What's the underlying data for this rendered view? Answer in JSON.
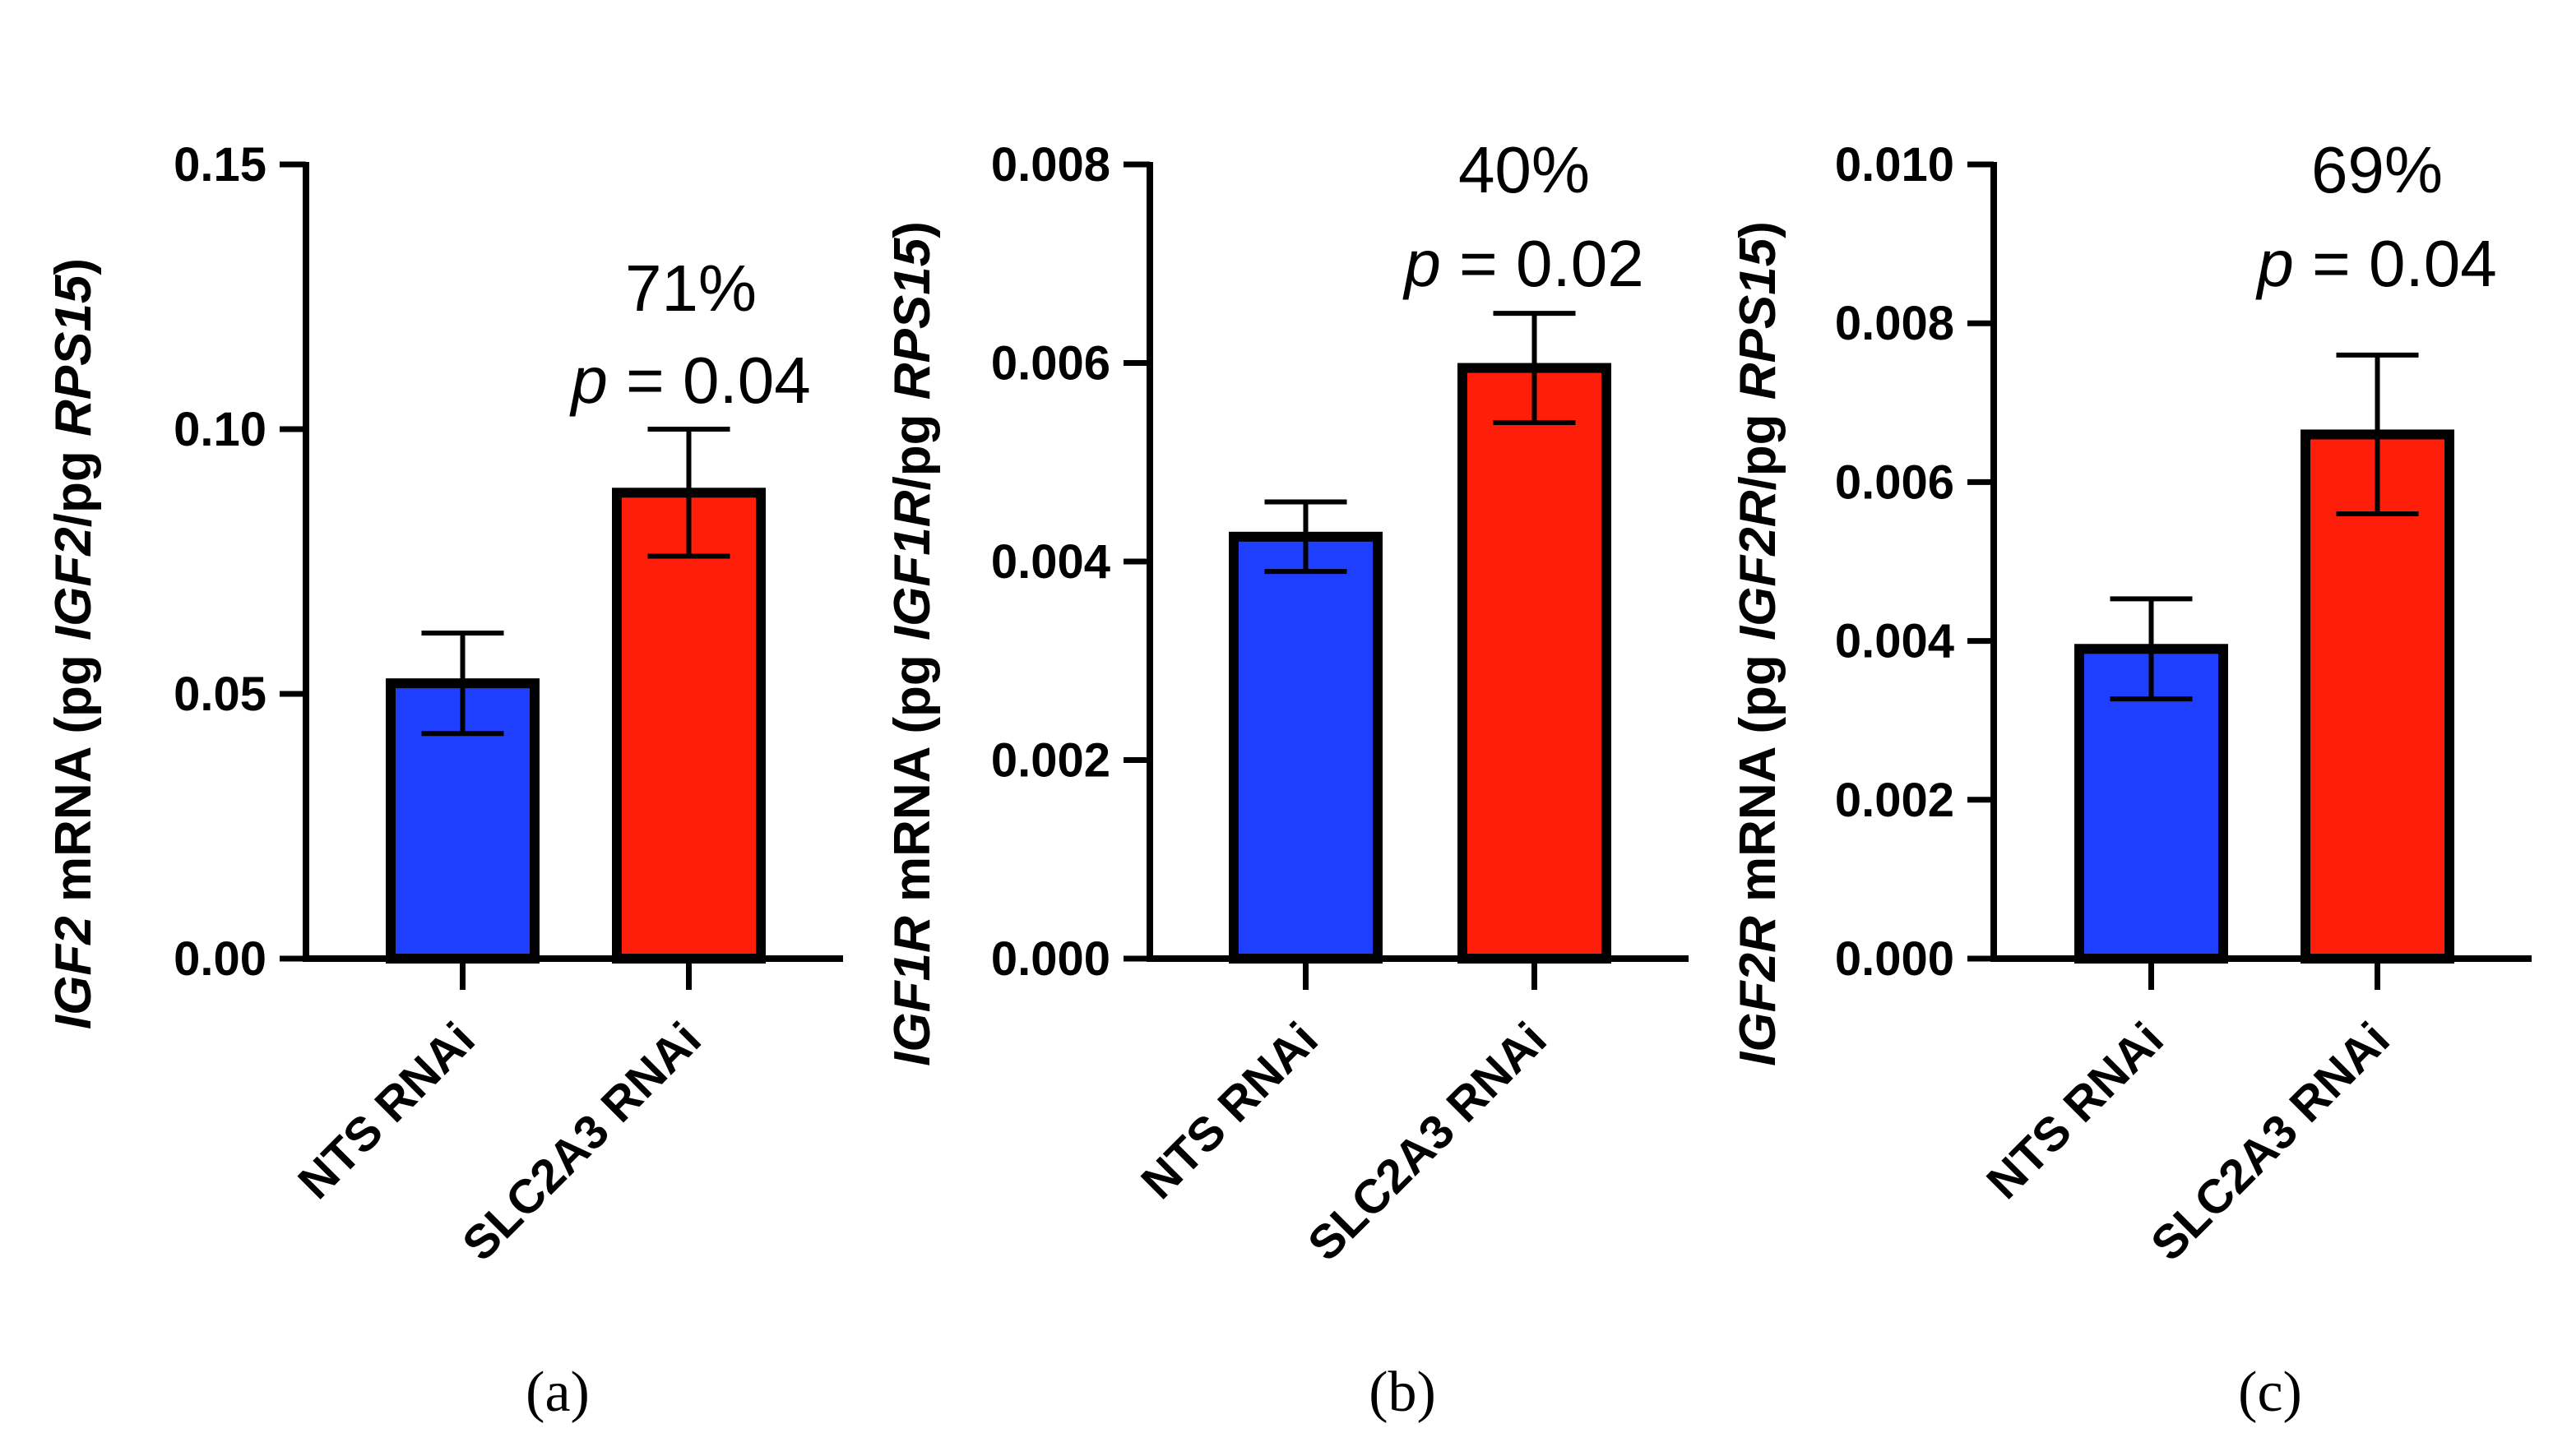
{
  "chart_data": [
    {
      "type": "bar",
      "panel_label": "(a)",
      "categories": [
        "NTS RNAi",
        "SLC2A3 RNAi"
      ],
      "values": [
        0.052,
        0.088
      ],
      "errors": [
        0.0095,
        0.012
      ],
      "colors": [
        "#1f3fff",
        "#ff1e0a"
      ],
      "ylim": [
        0,
        0.15
      ],
      "yticks": [
        "0.00",
        "0.05",
        "0.10",
        "0.15"
      ],
      "ytick_values": [
        0,
        0.05,
        0.1,
        0.15
      ],
      "ylabel": {
        "gene": "IGF2",
        "unit_prefix": " mRNA (pg ",
        "ref_gene_pre": "IGF2",
        "mid": "/pg ",
        "ref_gene": "RPS15",
        "close": ")"
      },
      "annotation": {
        "percent": "71%",
        "p_symbol": "p",
        "p_text": " = 0.04"
      }
    },
    {
      "type": "bar",
      "panel_label": "(b)",
      "categories": [
        "NTS RNAi",
        "SLC2A3 RNAi"
      ],
      "values": [
        0.00425,
        0.00595
      ],
      "errors": [
        0.00035,
        0.00055
      ],
      "colors": [
        "#1f3fff",
        "#ff1e0a"
      ],
      "ylim": [
        0,
        0.008
      ],
      "yticks": [
        "0.000",
        "0.002",
        "0.004",
        "0.006",
        "0.008"
      ],
      "ytick_values": [
        0,
        0.002,
        0.004,
        0.006,
        0.008
      ],
      "ylabel": {
        "gene": "IGF1R",
        "unit_prefix": " mRNA (pg ",
        "ref_gene_pre": "IGF1R",
        "mid": "/pg ",
        "ref_gene": "RPS15",
        "close": ")"
      },
      "annotation": {
        "percent": "40%",
        "p_symbol": "p",
        "p_text": " = 0.02"
      }
    },
    {
      "type": "bar",
      "panel_label": "(c)",
      "categories": [
        "NTS RNAi",
        "SLC2A3 RNAi"
      ],
      "values": [
        0.0039,
        0.0066
      ],
      "errors": [
        0.00063,
        0.001
      ],
      "colors": [
        "#1f3fff",
        "#ff1e0a"
      ],
      "ylim": [
        0,
        0.01
      ],
      "yticks": [
        "0.000",
        "0.002",
        "0.004",
        "0.006",
        "0.008",
        "0.010"
      ],
      "ytick_values": [
        0,
        0.002,
        0.004,
        0.006,
        0.008,
        0.01
      ],
      "ylabel": {
        "gene": "IGF2R",
        "unit_prefix": " mRNA (pg ",
        "ref_gene_pre": "IGF2R",
        "mid": "/pg ",
        "ref_gene": "RPS15",
        "close": ")"
      },
      "annotation": {
        "percent": "69%",
        "p_symbol": "p",
        "p_text": " = 0.04"
      }
    }
  ]
}
